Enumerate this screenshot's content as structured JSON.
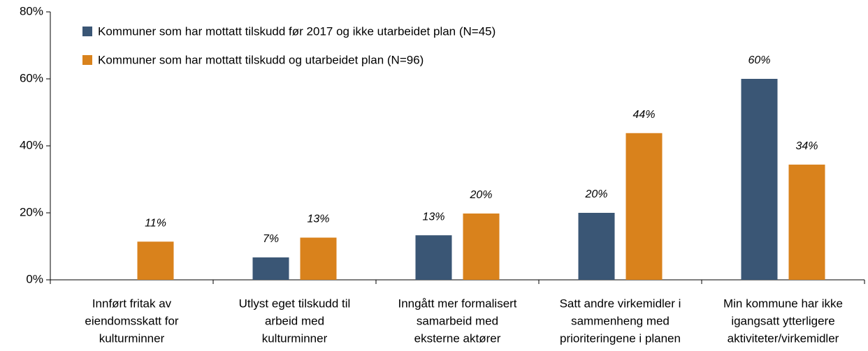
{
  "chart_data": {
    "type": "bar",
    "categories": [
      [
        "Innført fritak av",
        "eiendomsskatt for",
        "kulturminner"
      ],
      [
        "Utlyst eget tilskudd til",
        "arbeid med",
        "kulturminner"
      ],
      [
        "Inngått mer formalisert",
        "samarbeid med",
        "eksterne aktører"
      ],
      [
        "Satt andre virkemidler i",
        "sammenheng med",
        "prioriteringene i planen"
      ],
      [
        "Min kommune har ikke",
        "igangsatt ytterligere",
        "aktiviteter/virkemidler"
      ]
    ],
    "series": [
      {
        "name": "Kommuner som har mottatt tilskudd før 2017 og ikke utarbeidet plan (N=45)",
        "color": "#3a5675",
        "values": [
          null,
          6.7,
          13.3,
          20,
          60
        ],
        "value_labels": [
          null,
          "7%",
          "13%",
          "20%",
          "60%"
        ]
      },
      {
        "name": "Kommuner som har mottatt tilskudd og utarbeidet plan (N=96)",
        "color": "#d9821c",
        "values": [
          11.4,
          12.6,
          19.8,
          43.8,
          34.4
        ],
        "value_labels": [
          "11%",
          "13%",
          "20%",
          "44%",
          "34%"
        ]
      }
    ],
    "ylim": [
      0,
      80
    ],
    "yticks": [
      {
        "value": 0,
        "label": "0%"
      },
      {
        "value": 20,
        "label": "20%"
      },
      {
        "value": 40,
        "label": "40%"
      },
      {
        "value": 60,
        "label": "60%"
      },
      {
        "value": 80,
        "label": "80%"
      }
    ],
    "grid": false
  }
}
